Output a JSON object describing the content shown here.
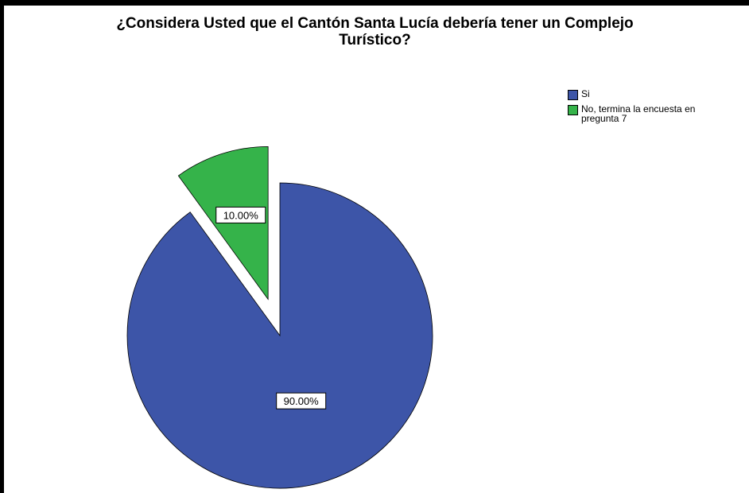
{
  "chart_data": {
    "type": "pie",
    "title": "¿Considera Usted que el Cantón Santa Lucía debería tener un Complejo Turístico?",
    "title_lines": [
      "¿Considera Usted que el Cantón Santa Lucía debería tener un Complejo",
      "Turístico?"
    ],
    "slices": [
      {
        "label": "Si",
        "value": 90.0,
        "display": "90.00%",
        "color": "#3d55a8",
        "exploded": false
      },
      {
        "label": "No, termina la encuesta en\npregunta 7",
        "value": 10.0,
        "display": "10.00%",
        "color": "#35b34a",
        "exploded": true
      }
    ],
    "start_angle": "12 o'clock",
    "direction": "clockwise",
    "legend_position": "top-right"
  }
}
